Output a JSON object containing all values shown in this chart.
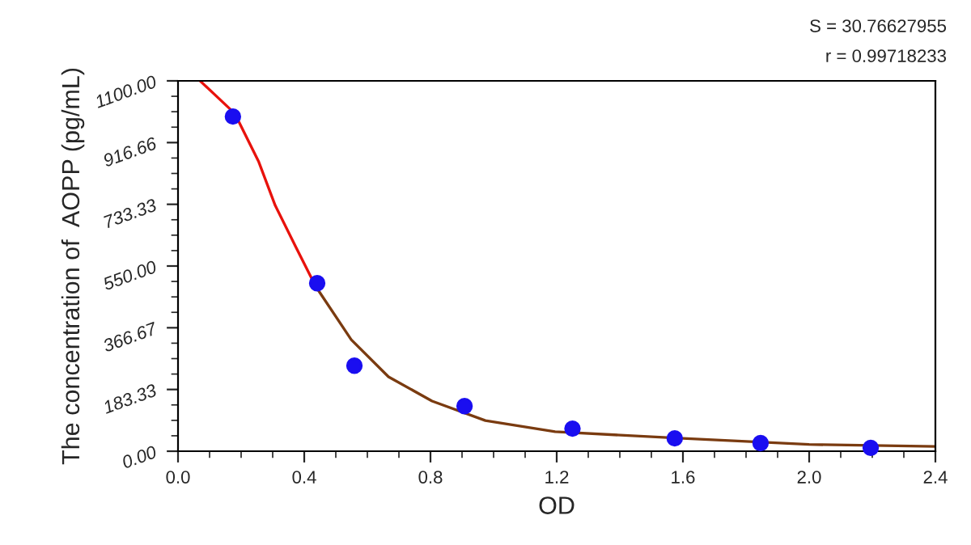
{
  "chart_data": {
    "type": "line",
    "xlabel": "OD",
    "ylabel": "The concentration of  AOPP (pg/mL)",
    "xlim": [
      0,
      2.4
    ],
    "xticks": [
      {
        "value": 0,
        "label": "0.0"
      },
      {
        "value": 0.4,
        "label": "0.4"
      },
      {
        "value": 0.8,
        "label": "0.8"
      },
      {
        "value": 1.2,
        "label": "1.2"
      },
      {
        "value": 1.6,
        "label": "1.6"
      },
      {
        "value": 2.0,
        "label": "2.0"
      },
      {
        "value": 2.4,
        "label": "2.4"
      }
    ],
    "ylim": [
      0,
      1100
    ],
    "yticks": [
      {
        "value": 0,
        "label": "0.00"
      },
      {
        "value": 183.33,
        "label": "183.33"
      },
      {
        "value": 366.67,
        "label": "366.67"
      },
      {
        "value": 550,
        "label": "550.00"
      },
      {
        "value": 733.33,
        "label": "733.33"
      },
      {
        "value": 916.66,
        "label": "916.66"
      },
      {
        "value": 1100,
        "label": "1100.00"
      }
    ],
    "grid": false,
    "legend": false,
    "series": [
      {
        "color": "#e8120c",
        "x": [
          0.07,
          0.18,
          0.256,
          0.308,
          0.374,
          0.436
        ],
        "values": [
          1100,
          1003,
          859,
          730,
          605,
          490
        ]
      },
      {
        "color": "#7a3b10",
        "x": [
          0.436,
          0.549,
          0.667,
          0.805,
          0.974,
          1.195,
          1.6,
          2.0,
          2.4
        ],
        "values": [
          490,
          331,
          221,
          149,
          91,
          58,
          38,
          20,
          14
        ]
      },
      {
        "type": "scatter",
        "marker": "circle",
        "color": "#1a0ef0",
        "x": [
          0.174,
          0.441,
          0.559,
          0.908,
          1.25,
          1.574,
          1.846,
          2.195
        ],
        "values": [
          994,
          499,
          254,
          134,
          67,
          38,
          24,
          10
        ]
      }
    ],
    "annotations": [
      "S = 30.76627955",
      "r = 0.99718233"
    ]
  }
}
